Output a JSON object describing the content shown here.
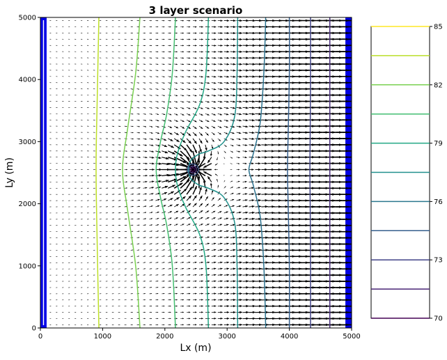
{
  "chart_data": [
    {
      "type": "contour",
      "title": "3 layer scenario",
      "xlabel": "Lx (m)",
      "ylabel": "Ly (m)",
      "xlim": [
        0,
        5000
      ],
      "ylim": [
        0,
        5000
      ],
      "xticks": [
        "0",
        "1000",
        "2000",
        "3000",
        "4000",
        "5000"
      ],
      "yticks": [
        "0",
        "1000",
        "2000",
        "3000",
        "4000",
        "5000"
      ],
      "grid": false,
      "well": {
        "x": 2450,
        "y": 2550
      },
      "boundaries": [
        {
          "side": "left",
          "x0": 0,
          "x1": 100,
          "color": "#0000e6"
        },
        {
          "side": "right",
          "x0": 4900,
          "x1": 5000,
          "color": "#0000e6"
        }
      ],
      "contours": [
        {
          "level": 83,
          "color": "#bddf26",
          "points": [
            [
              940,
              0
            ],
            [
              920,
              1000
            ],
            [
              900,
              2000
            ],
            [
              895,
              2550
            ],
            [
              900,
              3100
            ],
            [
              920,
              4000
            ],
            [
              940,
              5000
            ]
          ]
        },
        {
          "level": 82,
          "color": "#7ad151",
          "points": [
            [
              1600,
              0
            ],
            [
              1530,
              1000
            ],
            [
              1400,
              1900
            ],
            [
              1320,
              2550
            ],
            [
              1400,
              3200
            ],
            [
              1530,
              4100
            ],
            [
              1600,
              5000
            ]
          ]
        },
        {
          "level": 81,
          "color": "#44bf70",
          "points": [
            [
              2170,
              0
            ],
            [
              2120,
              1000
            ],
            [
              2030,
              1650
            ],
            [
              1930,
              2100
            ],
            [
              1860,
              2550
            ],
            [
              1930,
              3000
            ],
            [
              2030,
              3450
            ],
            [
              2120,
              4100
            ],
            [
              2170,
              5000
            ]
          ]
        },
        {
          "level": 80,
          "color": "#22a884",
          "points": [
            [
              2700,
              0
            ],
            [
              2660,
              1000
            ],
            [
              2560,
              1500
            ],
            [
              2330,
              1950
            ],
            [
              2200,
              2300
            ],
            [
              2170,
              2550
            ],
            [
              2200,
              2800
            ],
            [
              2330,
              3150
            ],
            [
              2560,
              3600
            ],
            [
              2660,
              4100
            ],
            [
              2700,
              5000
            ]
          ]
        },
        {
          "level": 79,
          "color": "#21918c",
          "points": [
            [
              3170,
              0
            ],
            [
              3160,
              1000
            ],
            [
              3120,
              1700
            ],
            [
              2950,
              2100
            ],
            [
              2700,
              2250
            ],
            [
              2550,
              2300
            ],
            [
              2420,
              2400
            ],
            [
              2380,
              2550
            ],
            [
              2420,
              2700
            ],
            [
              2550,
              2800
            ],
            [
              2700,
              2850
            ],
            [
              2950,
              3000
            ],
            [
              3120,
              3400
            ],
            [
              3160,
              4100
            ],
            [
              3170,
              5000
            ]
          ]
        },
        {
          "level": 77,
          "color": "#2c728e",
          "points": [
            [
              3620,
              0
            ],
            [
              3590,
              1000
            ],
            [
              3530,
              1800
            ],
            [
              3420,
              2300
            ],
            [
              3350,
              2550
            ],
            [
              3420,
              2800
            ],
            [
              3530,
              3300
            ],
            [
              3590,
              4100
            ],
            [
              3620,
              5000
            ]
          ]
        },
        {
          "level": 76,
          "color": "#355f8d",
          "points": [
            [
              4000,
              0
            ],
            [
              4000,
              1000
            ],
            [
              3980,
              2000
            ],
            [
              3970,
              2550
            ],
            [
              3980,
              3100
            ],
            [
              4000,
              4100
            ],
            [
              4000,
              5000
            ]
          ]
        },
        {
          "level": 74,
          "color": "#414487",
          "points": [
            [
              4340,
              0
            ],
            [
              4340,
              1000
            ],
            [
              4335,
              2000
            ],
            [
              4330,
              2550
            ],
            [
              4335,
              3100
            ],
            [
              4340,
              4100
            ],
            [
              4340,
              5000
            ]
          ]
        },
        {
          "level": 73,
          "color": "#472d7b",
          "points": [
            [
              4650,
              0
            ],
            [
              4650,
              5000
            ]
          ]
        }
      ],
      "colorbar": {
        "levels": [
          70,
          71,
          72,
          73,
          74,
          75,
          76,
          77,
          78,
          79,
          80,
          81,
          82,
          83,
          84,
          85
        ],
        "drawn_levels": [
          70,
          71.5,
          73,
          74.5,
          76,
          77.5,
          79,
          80.5,
          82,
          83.5,
          85
        ],
        "colors": [
          "#440154",
          "#482374",
          "#404387",
          "#345f8d",
          "#2a778e",
          "#21908d",
          "#22a784",
          "#42be71",
          "#79d151",
          "#bade28",
          "#fde725"
        ],
        "ticks": [
          "70",
          "73",
          "76",
          "79",
          "82",
          "85"
        ]
      }
    }
  ]
}
